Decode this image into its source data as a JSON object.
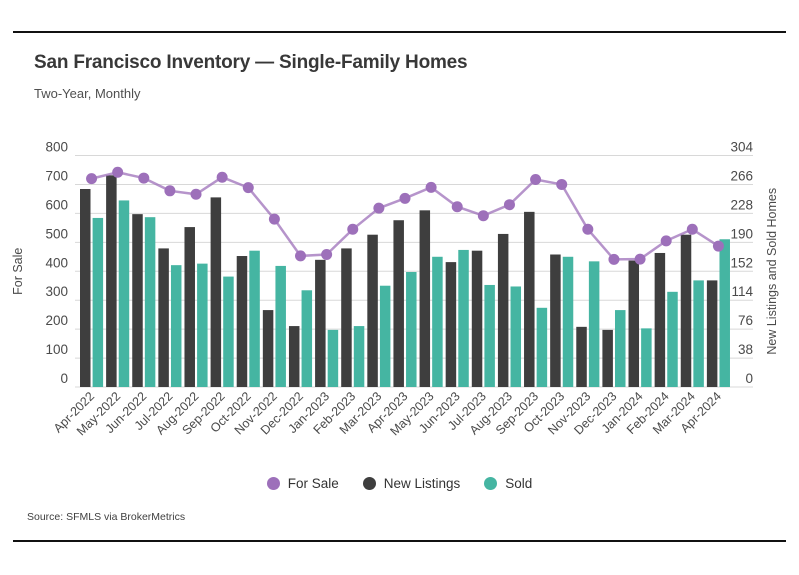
{
  "header": {
    "title": "San Francisco Inventory — Single-Family Homes",
    "subtitle": "Two-Year, Monthly"
  },
  "chart_data": {
    "type": "bar",
    "note": "combo chart: two bar series on right axis + one line series on left axis",
    "categories": [
      "Apr-2022",
      "May-2022",
      "Jun-2022",
      "Jul-2022",
      "Aug-2022",
      "Sep-2022",
      "Oct-2022",
      "Nov-2022",
      "Dec-2022",
      "Jan-2023",
      "Feb-2023",
      "Mar-2023",
      "Apr-2023",
      "May-2023",
      "Jun-2023",
      "Jul-2023",
      "Aug-2023",
      "Sep-2023",
      "Oct-2023",
      "Nov-2023",
      "Dec-2023",
      "Jan-2024",
      "Feb-2024",
      "Mar-2024",
      "Apr-2024"
    ],
    "series": [
      {
        "name": "For Sale",
        "type": "line",
        "axis": "left",
        "color": "#9d70ba",
        "values": [
          720,
          742,
          722,
          678,
          666,
          725,
          689,
          580,
          453,
          458,
          545,
          618,
          652,
          690,
          623,
          592,
          630,
          717,
          700,
          545,
          441,
          442,
          505,
          545,
          487
        ]
      },
      {
        "name": "New Listings",
        "type": "bar",
        "axis": "right",
        "color": "#3e3e3e",
        "values": [
          260,
          278,
          227,
          182,
          210,
          249,
          172,
          101,
          80,
          167,
          182,
          200,
          219,
          232,
          164,
          179,
          201,
          230,
          174,
          79,
          75,
          166,
          176,
          200,
          140
        ]
      },
      {
        "name": "Sold",
        "type": "bar",
        "axis": "right",
        "color": "#45b5a2",
        "values": [
          222,
          245,
          223,
          160,
          162,
          145,
          179,
          159,
          127,
          75,
          80,
          133,
          151,
          171,
          180,
          134,
          132,
          104,
          171,
          165,
          101,
          77,
          125,
          140,
          194
        ]
      }
    ],
    "left_axis": {
      "label": "For Sale",
      "max": 800,
      "ticks": [
        800,
        700,
        600,
        500,
        400,
        300,
        200,
        100,
        0
      ]
    },
    "right_axis": {
      "label": "New Listings and Sold Homes",
      "max": 304,
      "ticks": [
        304,
        266,
        228,
        190,
        152,
        114,
        76,
        38,
        0
      ]
    },
    "ylim_left": [
      0,
      800
    ],
    "ylim_right": [
      0,
      304
    ],
    "grid": true,
    "legend_position": "bottom",
    "gridline_color": "#d8d8d8"
  },
  "footer": {
    "source": "Source: SFMLS via BrokerMetrics"
  }
}
